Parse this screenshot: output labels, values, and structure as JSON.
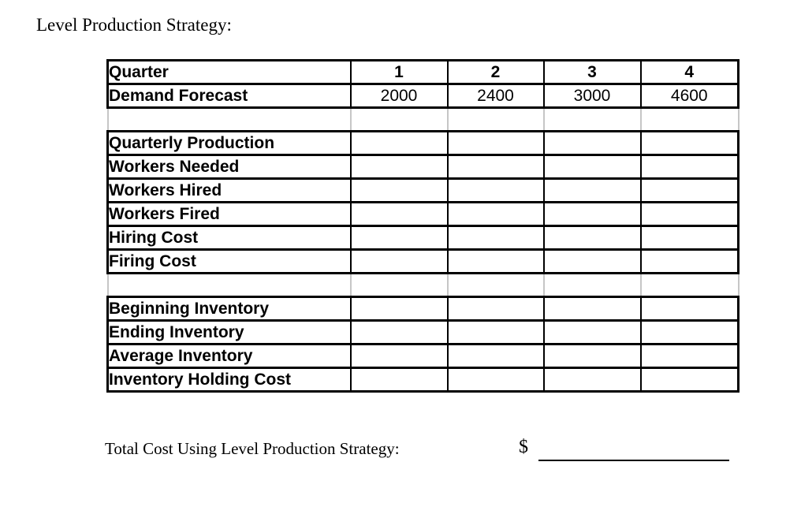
{
  "title": "Level Production Strategy:",
  "table": {
    "header_label": "Quarter",
    "columns": [
      "1",
      "2",
      "3",
      "4"
    ],
    "rows": [
      {
        "type": "data",
        "label": "Demand Forecast",
        "values": [
          "2000",
          "2400",
          "3000",
          "4600"
        ]
      },
      {
        "type": "spacer",
        "label": "",
        "values": [
          "",
          "",
          "",
          ""
        ]
      },
      {
        "type": "data",
        "label": "Quarterly Production",
        "values": [
          "",
          "",
          "",
          ""
        ]
      },
      {
        "type": "data",
        "label": "Workers Needed",
        "values": [
          "",
          "",
          "",
          ""
        ]
      },
      {
        "type": "data",
        "label": "Workers Hired",
        "values": [
          "",
          "",
          "",
          ""
        ]
      },
      {
        "type": "data",
        "label": "Workers Fired",
        "values": [
          "",
          "",
          "",
          ""
        ]
      },
      {
        "type": "data",
        "label": "Hiring Cost",
        "values": [
          "",
          "",
          "",
          ""
        ]
      },
      {
        "type": "data",
        "label": "Firing Cost",
        "values": [
          "",
          "",
          "",
          ""
        ]
      },
      {
        "type": "spacer",
        "label": "",
        "values": [
          "",
          "",
          "",
          ""
        ]
      },
      {
        "type": "data",
        "label": "Beginning Inventory",
        "values": [
          "",
          "",
          "",
          ""
        ]
      },
      {
        "type": "data",
        "label": "Ending Inventory",
        "values": [
          "",
          "",
          "",
          ""
        ]
      },
      {
        "type": "data",
        "label": "Average Inventory",
        "values": [
          "",
          "",
          "",
          ""
        ]
      },
      {
        "type": "data",
        "label": "Inventory Holding Cost",
        "values": [
          "",
          "",
          "",
          ""
        ]
      }
    ]
  },
  "footer": {
    "label": "Total Cost Using Level Production Strategy:",
    "currency": "$"
  },
  "colors": {
    "text": "#000000",
    "grid_strong": "#000000",
    "grid_light": "#c6c6c6",
    "background": "#ffffff"
  }
}
